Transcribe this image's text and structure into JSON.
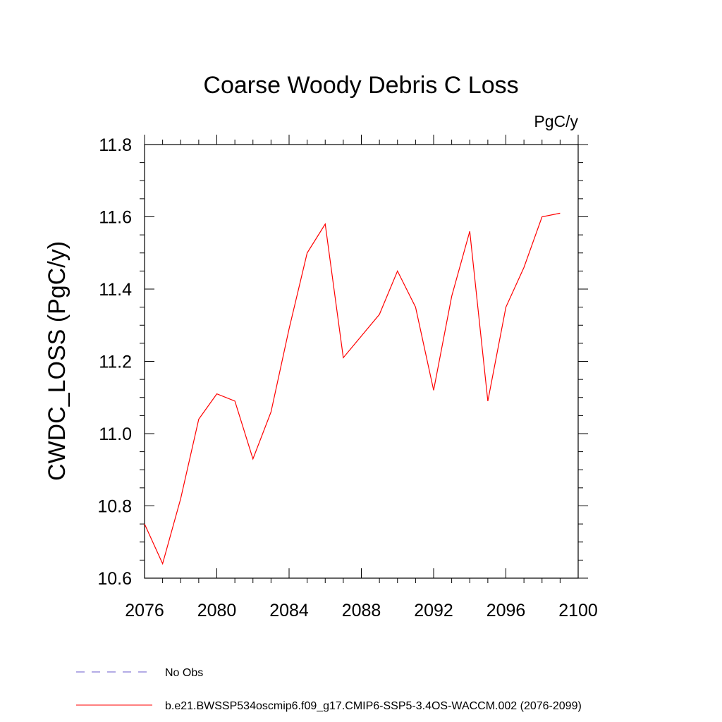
{
  "chart_data": {
    "type": "line",
    "title": "Coarse Woody Debris C Loss",
    "units_label": "PgC/y",
    "xlabel": "",
    "ylabel": "CWDC_LOSS  (PgC/y)",
    "xlim": [
      2076,
      2100
    ],
    "ylim": [
      10.6,
      11.8
    ],
    "x_ticks": [
      "2076",
      "2080",
      "2084",
      "2088",
      "2092",
      "2096",
      "2100"
    ],
    "y_ticks": [
      "10.6",
      "10.8",
      "11.0",
      "11.2",
      "11.4",
      "11.6",
      "11.8"
    ],
    "grid": false,
    "legend_position": "bottom",
    "series": [
      {
        "name": "No Obs",
        "color": "#6a5acd",
        "dash": "dashed",
        "x": [],
        "values": []
      },
      {
        "name": "b.e21.BWSSP534oscmip6.f09_g17.CMIP6-SSP5-3.4OS-WACCM.002 (2076-2099)",
        "color": "#ff0000",
        "dash": "solid",
        "x": [
          2076,
          2077,
          2078,
          2079,
          2080,
          2081,
          2082,
          2083,
          2084,
          2085,
          2086,
          2087,
          2088,
          2089,
          2090,
          2091,
          2092,
          2093,
          2094,
          2095,
          2096,
          2097,
          2098,
          2099
        ],
        "values": [
          10.75,
          10.64,
          10.82,
          11.04,
          11.11,
          11.09,
          10.93,
          11.06,
          11.29,
          11.5,
          11.58,
          11.21,
          11.27,
          11.33,
          11.45,
          11.35,
          11.12,
          11.38,
          11.56,
          11.09,
          11.35,
          11.46,
          11.6,
          11.61
        ]
      }
    ]
  }
}
